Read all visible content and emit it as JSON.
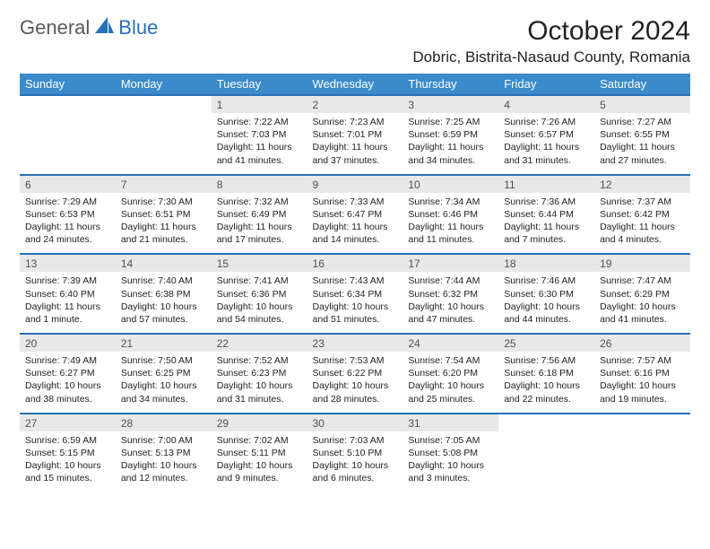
{
  "logo": {
    "general": "General",
    "blue": "Blue"
  },
  "title": "October 2024",
  "location": "Dobric, Bistrita-Nasaud County, Romania",
  "colors": {
    "header_bg": "#3b8bca",
    "header_text": "#ffffff",
    "daynum_bg": "#e8e8e8",
    "daynum_text": "#505050",
    "border_blue": "#2870b8",
    "body_text": "#222222",
    "logo_gray": "#5a5a5a"
  },
  "daysOfWeek": [
    "Sunday",
    "Monday",
    "Tuesday",
    "Wednesday",
    "Thursday",
    "Friday",
    "Saturday"
  ],
  "weeks": [
    [
      null,
      null,
      {
        "n": "1",
        "sr": "7:22 AM",
        "ss": "7:03 PM",
        "dl": "11 hours and 41 minutes."
      },
      {
        "n": "2",
        "sr": "7:23 AM",
        "ss": "7:01 PM",
        "dl": "11 hours and 37 minutes."
      },
      {
        "n": "3",
        "sr": "7:25 AM",
        "ss": "6:59 PM",
        "dl": "11 hours and 34 minutes."
      },
      {
        "n": "4",
        "sr": "7:26 AM",
        "ss": "6:57 PM",
        "dl": "11 hours and 31 minutes."
      },
      {
        "n": "5",
        "sr": "7:27 AM",
        "ss": "6:55 PM",
        "dl": "11 hours and 27 minutes."
      }
    ],
    [
      {
        "n": "6",
        "sr": "7:29 AM",
        "ss": "6:53 PM",
        "dl": "11 hours and 24 minutes."
      },
      {
        "n": "7",
        "sr": "7:30 AM",
        "ss": "6:51 PM",
        "dl": "11 hours and 21 minutes."
      },
      {
        "n": "8",
        "sr": "7:32 AM",
        "ss": "6:49 PM",
        "dl": "11 hours and 17 minutes."
      },
      {
        "n": "9",
        "sr": "7:33 AM",
        "ss": "6:47 PM",
        "dl": "11 hours and 14 minutes."
      },
      {
        "n": "10",
        "sr": "7:34 AM",
        "ss": "6:46 PM",
        "dl": "11 hours and 11 minutes."
      },
      {
        "n": "11",
        "sr": "7:36 AM",
        "ss": "6:44 PM",
        "dl": "11 hours and 7 minutes."
      },
      {
        "n": "12",
        "sr": "7:37 AM",
        "ss": "6:42 PM",
        "dl": "11 hours and 4 minutes."
      }
    ],
    [
      {
        "n": "13",
        "sr": "7:39 AM",
        "ss": "6:40 PM",
        "dl": "11 hours and 1 minute."
      },
      {
        "n": "14",
        "sr": "7:40 AM",
        "ss": "6:38 PM",
        "dl": "10 hours and 57 minutes."
      },
      {
        "n": "15",
        "sr": "7:41 AM",
        "ss": "6:36 PM",
        "dl": "10 hours and 54 minutes."
      },
      {
        "n": "16",
        "sr": "7:43 AM",
        "ss": "6:34 PM",
        "dl": "10 hours and 51 minutes."
      },
      {
        "n": "17",
        "sr": "7:44 AM",
        "ss": "6:32 PM",
        "dl": "10 hours and 47 minutes."
      },
      {
        "n": "18",
        "sr": "7:46 AM",
        "ss": "6:30 PM",
        "dl": "10 hours and 44 minutes."
      },
      {
        "n": "19",
        "sr": "7:47 AM",
        "ss": "6:29 PM",
        "dl": "10 hours and 41 minutes."
      }
    ],
    [
      {
        "n": "20",
        "sr": "7:49 AM",
        "ss": "6:27 PM",
        "dl": "10 hours and 38 minutes."
      },
      {
        "n": "21",
        "sr": "7:50 AM",
        "ss": "6:25 PM",
        "dl": "10 hours and 34 minutes."
      },
      {
        "n": "22",
        "sr": "7:52 AM",
        "ss": "6:23 PM",
        "dl": "10 hours and 31 minutes."
      },
      {
        "n": "23",
        "sr": "7:53 AM",
        "ss": "6:22 PM",
        "dl": "10 hours and 28 minutes."
      },
      {
        "n": "24",
        "sr": "7:54 AM",
        "ss": "6:20 PM",
        "dl": "10 hours and 25 minutes."
      },
      {
        "n": "25",
        "sr": "7:56 AM",
        "ss": "6:18 PM",
        "dl": "10 hours and 22 minutes."
      },
      {
        "n": "26",
        "sr": "7:57 AM",
        "ss": "6:16 PM",
        "dl": "10 hours and 19 minutes."
      }
    ],
    [
      {
        "n": "27",
        "sr": "6:59 AM",
        "ss": "5:15 PM",
        "dl": "10 hours and 15 minutes."
      },
      {
        "n": "28",
        "sr": "7:00 AM",
        "ss": "5:13 PM",
        "dl": "10 hours and 12 minutes."
      },
      {
        "n": "29",
        "sr": "7:02 AM",
        "ss": "5:11 PM",
        "dl": "10 hours and 9 minutes."
      },
      {
        "n": "30",
        "sr": "7:03 AM",
        "ss": "5:10 PM",
        "dl": "10 hours and 6 minutes."
      },
      {
        "n": "31",
        "sr": "7:05 AM",
        "ss": "5:08 PM",
        "dl": "10 hours and 3 minutes."
      },
      null,
      null
    ]
  ],
  "labels": {
    "sunrise": "Sunrise: ",
    "sunset": "Sunset: ",
    "daylight": "Daylight: "
  }
}
